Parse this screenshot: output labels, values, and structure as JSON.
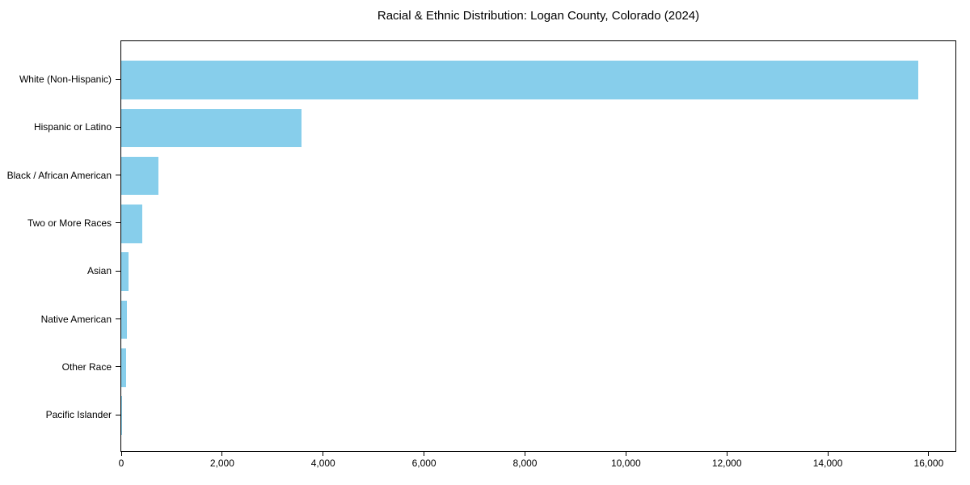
{
  "chart_data": {
    "type": "bar",
    "orientation": "horizontal",
    "title": "Racial & Ethnic Distribution: Logan County, Colorado (2024)",
    "categories": [
      "White (Non-Hispanic)",
      "Hispanic or Latino",
      "Black / African American",
      "Two or More Races",
      "Asian",
      "Native American",
      "Other Race",
      "Pacific Islander"
    ],
    "values": [
      15800,
      3570,
      740,
      420,
      150,
      120,
      100,
      10
    ],
    "xlim": [
      0,
      16530
    ],
    "xticks": [
      0,
      2000,
      4000,
      6000,
      8000,
      10000,
      12000,
      14000,
      16000
    ],
    "xtick_labels": [
      "0",
      "2,000",
      "4,000",
      "6,000",
      "8,000",
      "10,000",
      "12,000",
      "14,000",
      "16,000"
    ],
    "xlabel": "",
    "ylabel": "",
    "bar_color": "#87CEEB",
    "background_color": "#ffffff",
    "axis_color": "#000000",
    "text_color": "#000000",
    "grid": false,
    "legend": null
  }
}
